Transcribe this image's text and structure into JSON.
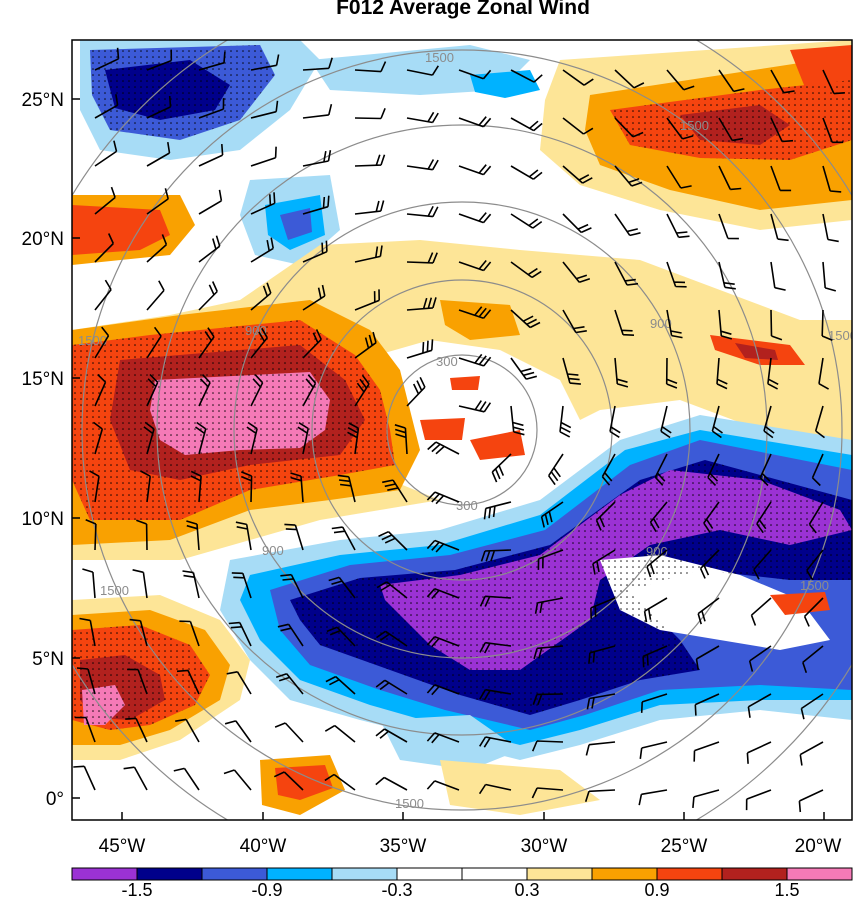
{
  "title": "F012 Average Zonal Wind",
  "x_ticks": [
    "45°W",
    "40°W",
    "35°W",
    "30°W",
    "25°W",
    "20°W"
  ],
  "y_ticks": [
    "25°N",
    "20°N",
    "15°N",
    "10°N",
    "5°N",
    "0°"
  ],
  "range_ring_labels": [
    "300",
    "300",
    "900",
    "900",
    "900",
    "900",
    "1500",
    "1500",
    "1500",
    "1500",
    "1500",
    "1500",
    "1500"
  ],
  "colorbar": {
    "colors": [
      "#9b32d4",
      "#00008b",
      "#3c5ad7",
      "#00b2ff",
      "#a7dcf6",
      "#ffffff",
      "#ffffff",
      "#fde597",
      "#f9a101",
      "#f5440f",
      "#b2211e",
      "#f57ab7"
    ],
    "labels": [
      "-1.5",
      "-0.9",
      "-0.3",
      "0.3",
      "0.9",
      "1.5"
    ]
  }
}
